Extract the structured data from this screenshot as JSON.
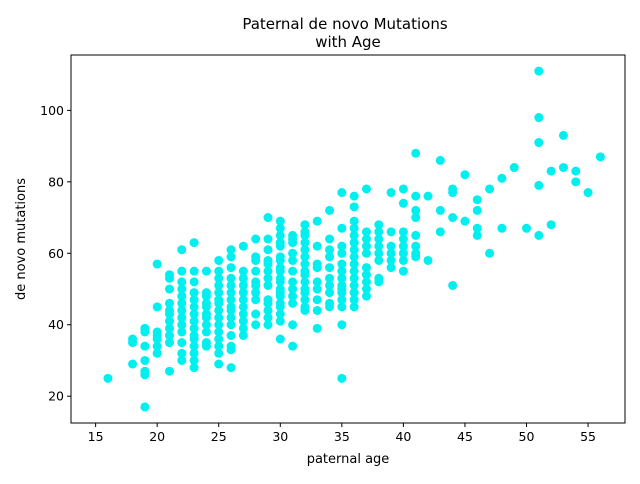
{
  "chart_data": {
    "type": "scatter",
    "title_lines": [
      "Paternal de novo Mutations",
      "with Age"
    ],
    "xlabel": "paternal age",
    "ylabel": "de novo mutations",
    "xlim": [
      13.0,
      58.0
    ],
    "ylim": [
      12.5,
      115.5
    ],
    "xticks": [
      15,
      20,
      25,
      30,
      35,
      40,
      45,
      50,
      55
    ],
    "yticks": [
      20,
      40,
      60,
      80,
      100
    ],
    "xtick_labels": [
      "15",
      "20",
      "25",
      "30",
      "35",
      "40",
      "45",
      "50",
      "55"
    ],
    "ytick_labels": [
      "20",
      "40",
      "60",
      "80",
      "100"
    ],
    "grid": false,
    "legend": "none",
    "marker_color": "#00f0f0",
    "series": [
      {
        "name": "de novo mutations",
        "points": [
          [
            16,
            25
          ],
          [
            18,
            29
          ],
          [
            18,
            35
          ],
          [
            18,
            36
          ],
          [
            19,
            17
          ],
          [
            19,
            26
          ],
          [
            19,
            27
          ],
          [
            19,
            30
          ],
          [
            19,
            34
          ],
          [
            19,
            38
          ],
          [
            19,
            39
          ],
          [
            20,
            32
          ],
          [
            20,
            34
          ],
          [
            20,
            36
          ],
          [
            20,
            37
          ],
          [
            20,
            38
          ],
          [
            20,
            45
          ],
          [
            20,
            57
          ],
          [
            21,
            27
          ],
          [
            21,
            35
          ],
          [
            21,
            37
          ],
          [
            21,
            39
          ],
          [
            21,
            41
          ],
          [
            21,
            43
          ],
          [
            21,
            44
          ],
          [
            21,
            46
          ],
          [
            21,
            50
          ],
          [
            21,
            53
          ],
          [
            21,
            54
          ],
          [
            22,
            30
          ],
          [
            22,
            32
          ],
          [
            22,
            35
          ],
          [
            22,
            38
          ],
          [
            22,
            40
          ],
          [
            22,
            42
          ],
          [
            22,
            44
          ],
          [
            22,
            46
          ],
          [
            22,
            48
          ],
          [
            22,
            50
          ],
          [
            22,
            52
          ],
          [
            22,
            55
          ],
          [
            22,
            61
          ],
          [
            23,
            28
          ],
          [
            23,
            30
          ],
          [
            23,
            32
          ],
          [
            23,
            34
          ],
          [
            23,
            36
          ],
          [
            23,
            37
          ],
          [
            23,
            39
          ],
          [
            23,
            41
          ],
          [
            23,
            43
          ],
          [
            23,
            45
          ],
          [
            23,
            47
          ],
          [
            23,
            49
          ],
          [
            23,
            52
          ],
          [
            23,
            55
          ],
          [
            23,
            63
          ],
          [
            24,
            34
          ],
          [
            24,
            35
          ],
          [
            24,
            38
          ],
          [
            24,
            40
          ],
          [
            24,
            42
          ],
          [
            24,
            43
          ],
          [
            24,
            45
          ],
          [
            24,
            46
          ],
          [
            24,
            48
          ],
          [
            24,
            49
          ],
          [
            24,
            55
          ],
          [
            25,
            29
          ],
          [
            25,
            32
          ],
          [
            25,
            34
          ],
          [
            25,
            36
          ],
          [
            25,
            38
          ],
          [
            25,
            40
          ],
          [
            25,
            42
          ],
          [
            25,
            44
          ],
          [
            25,
            46
          ],
          [
            25,
            47
          ],
          [
            25,
            49
          ],
          [
            25,
            51
          ],
          [
            25,
            53
          ],
          [
            25,
            55
          ],
          [
            25,
            58
          ],
          [
            26,
            28
          ],
          [
            26,
            33
          ],
          [
            26,
            34
          ],
          [
            26,
            37
          ],
          [
            26,
            40
          ],
          [
            26,
            42
          ],
          [
            26,
            44
          ],
          [
            26,
            45
          ],
          [
            26,
            47
          ],
          [
            26,
            49
          ],
          [
            26,
            51
          ],
          [
            26,
            53
          ],
          [
            26,
            56
          ],
          [
            26,
            59
          ],
          [
            26,
            61
          ],
          [
            27,
            37
          ],
          [
            27,
            39
          ],
          [
            27,
            41
          ],
          [
            27,
            43
          ],
          [
            27,
            45
          ],
          [
            27,
            47
          ],
          [
            27,
            49
          ],
          [
            27,
            51
          ],
          [
            27,
            53
          ],
          [
            27,
            55
          ],
          [
            27,
            62
          ],
          [
            28,
            40
          ],
          [
            28,
            43
          ],
          [
            28,
            47
          ],
          [
            28,
            49
          ],
          [
            28,
            51
          ],
          [
            28,
            52
          ],
          [
            28,
            55
          ],
          [
            28,
            58
          ],
          [
            28,
            59
          ],
          [
            28,
            64
          ],
          [
            29,
            40
          ],
          [
            29,
            42
          ],
          [
            29,
            44
          ],
          [
            29,
            46
          ],
          [
            29,
            47
          ],
          [
            29,
            51
          ],
          [
            29,
            53
          ],
          [
            29,
            55
          ],
          [
            29,
            57
          ],
          [
            29,
            58
          ],
          [
            29,
            61
          ],
          [
            29,
            64
          ],
          [
            29,
            70
          ],
          [
            30,
            36
          ],
          [
            30,
            41
          ],
          [
            30,
            43
          ],
          [
            30,
            45
          ],
          [
            30,
            46
          ],
          [
            30,
            48
          ],
          [
            30,
            49
          ],
          [
            30,
            50
          ],
          [
            30,
            52
          ],
          [
            30,
            53
          ],
          [
            30,
            55
          ],
          [
            30,
            56
          ],
          [
            30,
            58
          ],
          [
            30,
            59
          ],
          [
            30,
            62
          ],
          [
            30,
            63
          ],
          [
            30,
            65
          ],
          [
            30,
            67
          ],
          [
            30,
            69
          ],
          [
            31,
            34
          ],
          [
            31,
            40
          ],
          [
            31,
            46
          ],
          [
            31,
            48
          ],
          [
            31,
            50
          ],
          [
            31,
            52
          ],
          [
            31,
            55
          ],
          [
            31,
            58
          ],
          [
            31,
            60
          ],
          [
            31,
            63
          ],
          [
            31,
            64
          ],
          [
            31,
            65
          ],
          [
            32,
            44
          ],
          [
            32,
            45
          ],
          [
            32,
            47
          ],
          [
            32,
            49
          ],
          [
            32,
            50
          ],
          [
            32,
            52
          ],
          [
            32,
            54
          ],
          [
            32,
            55
          ],
          [
            32,
            57
          ],
          [
            32,
            59
          ],
          [
            32,
            61
          ],
          [
            32,
            63
          ],
          [
            32,
            65
          ],
          [
            32,
            66
          ],
          [
            32,
            68
          ],
          [
            33,
            39
          ],
          [
            33,
            44
          ],
          [
            33,
            47
          ],
          [
            33,
            50
          ],
          [
            33,
            52
          ],
          [
            33,
            56
          ],
          [
            33,
            57
          ],
          [
            33,
            62
          ],
          [
            33,
            69
          ],
          [
            34,
            45
          ],
          [
            34,
            46
          ],
          [
            34,
            49
          ],
          [
            34,
            51
          ],
          [
            34,
            53
          ],
          [
            34,
            56
          ],
          [
            34,
            59
          ],
          [
            34,
            61
          ],
          [
            34,
            64
          ],
          [
            34,
            72
          ],
          [
            35,
            25
          ],
          [
            35,
            40
          ],
          [
            35,
            45
          ],
          [
            35,
            47
          ],
          [
            35,
            49
          ],
          [
            35,
            50
          ],
          [
            35,
            51
          ],
          [
            35,
            53
          ],
          [
            35,
            55
          ],
          [
            35,
            57
          ],
          [
            35,
            60
          ],
          [
            35,
            62
          ],
          [
            35,
            67
          ],
          [
            35,
            77
          ],
          [
            36,
            45
          ],
          [
            36,
            47
          ],
          [
            36,
            49
          ],
          [
            36,
            51
          ],
          [
            36,
            53
          ],
          [
            36,
            55
          ],
          [
            36,
            57
          ],
          [
            36,
            59
          ],
          [
            36,
            61
          ],
          [
            36,
            63
          ],
          [
            36,
            65
          ],
          [
            36,
            67
          ],
          [
            36,
            69
          ],
          [
            36,
            73
          ],
          [
            36,
            76
          ],
          [
            37,
            48
          ],
          [
            37,
            50
          ],
          [
            37,
            52
          ],
          [
            37,
            54
          ],
          [
            37,
            56
          ],
          [
            37,
            60
          ],
          [
            37,
            62
          ],
          [
            37,
            64
          ],
          [
            37,
            66
          ],
          [
            37,
            78
          ],
          [
            38,
            52
          ],
          [
            38,
            53
          ],
          [
            38,
            58
          ],
          [
            38,
            60
          ],
          [
            38,
            62
          ],
          [
            38,
            64
          ],
          [
            38,
            66
          ],
          [
            38,
            68
          ],
          [
            39,
            56
          ],
          [
            39,
            58
          ],
          [
            39,
            60
          ],
          [
            39,
            62
          ],
          [
            39,
            66
          ],
          [
            39,
            77
          ],
          [
            40,
            55
          ],
          [
            40,
            58
          ],
          [
            40,
            60
          ],
          [
            40,
            62
          ],
          [
            40,
            64
          ],
          [
            40,
            66
          ],
          [
            40,
            74
          ],
          [
            40,
            78
          ],
          [
            41,
            59
          ],
          [
            41,
            60
          ],
          [
            41,
            62
          ],
          [
            41,
            65
          ],
          [
            41,
            70
          ],
          [
            41,
            72
          ],
          [
            41,
            76
          ],
          [
            41,
            88
          ],
          [
            42,
            58
          ],
          [
            42,
            76
          ],
          [
            43,
            66
          ],
          [
            43,
            72
          ],
          [
            43,
            86
          ],
          [
            44,
            51
          ],
          [
            44,
            70
          ],
          [
            44,
            77
          ],
          [
            44,
            78
          ],
          [
            45,
            69
          ],
          [
            45,
            82
          ],
          [
            46,
            65
          ],
          [
            46,
            67
          ],
          [
            46,
            72
          ],
          [
            46,
            75
          ],
          [
            47,
            60
          ],
          [
            47,
            78
          ],
          [
            48,
            67
          ],
          [
            48,
            81
          ],
          [
            49,
            84
          ],
          [
            50,
            67
          ],
          [
            51,
            65
          ],
          [
            51,
            79
          ],
          [
            51,
            91
          ],
          [
            51,
            98
          ],
          [
            51,
            111
          ],
          [
            52,
            68
          ],
          [
            52,
            83
          ],
          [
            53,
            84
          ],
          [
            53,
            93
          ],
          [
            54,
            80
          ],
          [
            54,
            83
          ],
          [
            55,
            77
          ],
          [
            56,
            87
          ]
        ]
      }
    ]
  }
}
